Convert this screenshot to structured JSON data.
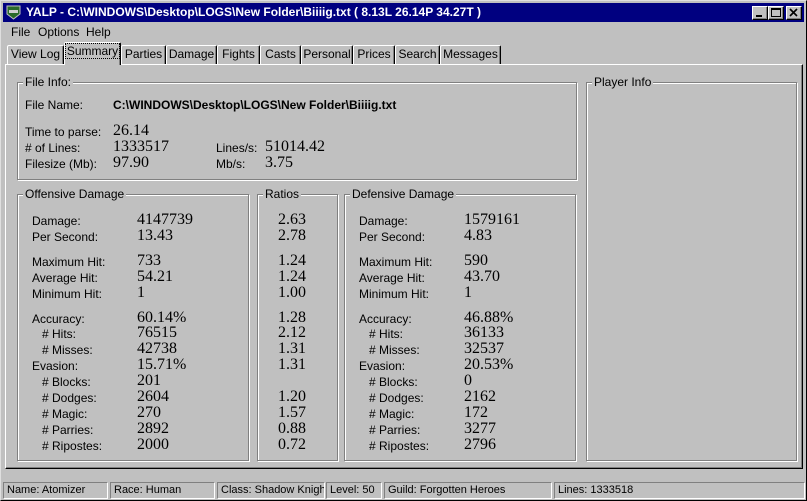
{
  "window": {
    "title": "YALP - C:\\WINDOWS\\Desktop\\LOGS\\New Folder\\Biiiig.txt ( 8.13L 26.14P 34.27T )",
    "app_icon": "yalp-app-icon"
  },
  "menu": [
    "File",
    "Options",
    "Help"
  ],
  "tabs": [
    "View Log",
    "Summary",
    "Parties",
    "Damage",
    "Fights",
    "Casts",
    "Personal",
    "Prices",
    "Search",
    "Messages"
  ],
  "active_tab": "Summary",
  "file_info": {
    "title": "File Info:",
    "file_name_label": "File Name:",
    "file_name": "C:\\WINDOWS\\Desktop\\LOGS\\New Folder\\Biiiig.txt",
    "time_label": "Time to parse:",
    "time": "26.14",
    "lines_label": "# of Lines:",
    "lines": "1333517",
    "lps_label": "Lines/s:",
    "lps": "51014.42",
    "filesize_label": "Filesize (Mb):",
    "filesize": "97.90",
    "mbs_label": "Mb/s:",
    "mbs": "3.75"
  },
  "player_info": {
    "title": "Player Info"
  },
  "offensive": {
    "title": "Offensive Damage",
    "rows": [
      {
        "label": "Damage:",
        "value": "4147739"
      },
      {
        "label": "Per Second:",
        "value": "13.43"
      },
      {
        "label": "Maximum Hit:",
        "value": "733"
      },
      {
        "label": "Average Hit:",
        "value": "54.21"
      },
      {
        "label": "Minimum Hit:",
        "value": "1"
      },
      {
        "label": "Accuracy:",
        "value": "60.14%"
      },
      {
        "label": "# Hits:",
        "value": "76515"
      },
      {
        "label": "# Misses:",
        "value": "42738"
      },
      {
        "label": "Evasion:",
        "value": "15.71%"
      },
      {
        "label": "# Blocks:",
        "value": "201"
      },
      {
        "label": "# Dodges:",
        "value": "2604"
      },
      {
        "label": "# Magic:",
        "value": "270"
      },
      {
        "label": "# Parries:",
        "value": "2892"
      },
      {
        "label": "# Ripostes:",
        "value": "2000"
      }
    ]
  },
  "ratios": {
    "title": "Ratios",
    "values": [
      "2.63",
      "2.78",
      "1.24",
      "1.24",
      "1.00",
      "1.28",
      "2.12",
      "1.31",
      "1.31",
      "",
      "1.20",
      "1.57",
      "0.88",
      "0.72"
    ]
  },
  "defensive": {
    "title": "Defensive Damage",
    "rows": [
      {
        "label": "Damage:",
        "value": "1579161"
      },
      {
        "label": "Per Second:",
        "value": "4.83"
      },
      {
        "label": "Maximum Hit:",
        "value": "590"
      },
      {
        "label": "Average Hit:",
        "value": "43.70"
      },
      {
        "label": "Minimum Hit:",
        "value": "1"
      },
      {
        "label": "Accuracy:",
        "value": "46.88%"
      },
      {
        "label": "# Hits:",
        "value": "36133"
      },
      {
        "label": "# Misses:",
        "value": "32537"
      },
      {
        "label": "Evasion:",
        "value": "20.53%"
      },
      {
        "label": "# Blocks:",
        "value": "0"
      },
      {
        "label": "# Dodges:",
        "value": "2162"
      },
      {
        "label": "# Magic:",
        "value": "172"
      },
      {
        "label": "# Parries:",
        "value": "3277"
      },
      {
        "label": "# Ripostes:",
        "value": "2796"
      }
    ]
  },
  "status": [
    "Name: Atomizer",
    "Race: Human",
    "Class: Shadow Knight",
    "Level: 50",
    "Guild: Forgotten Heroes",
    "Lines: 1333518"
  ]
}
